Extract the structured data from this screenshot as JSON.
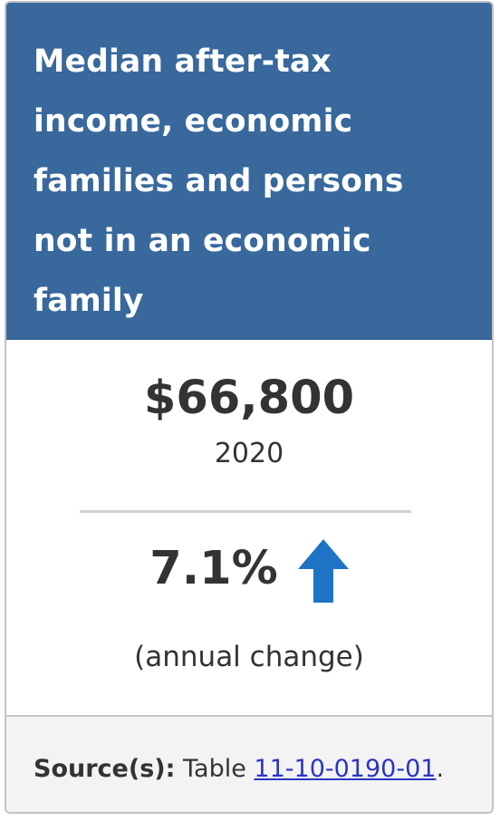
{
  "card": {
    "title": "Median after-tax income, economic families and persons not in an economic family",
    "value": "$66,800",
    "reference_year": "2020",
    "change": "7.1%",
    "change_direction": "up",
    "change_caption": "(annual change)"
  },
  "source": {
    "label": "Source(s):",
    "prefix": "Table",
    "link_text": "11-10-0190-01",
    "suffix": "."
  },
  "colors": {
    "header_background": "#38689c",
    "arrow": "#1f73c4",
    "link": "#2b35c3"
  }
}
